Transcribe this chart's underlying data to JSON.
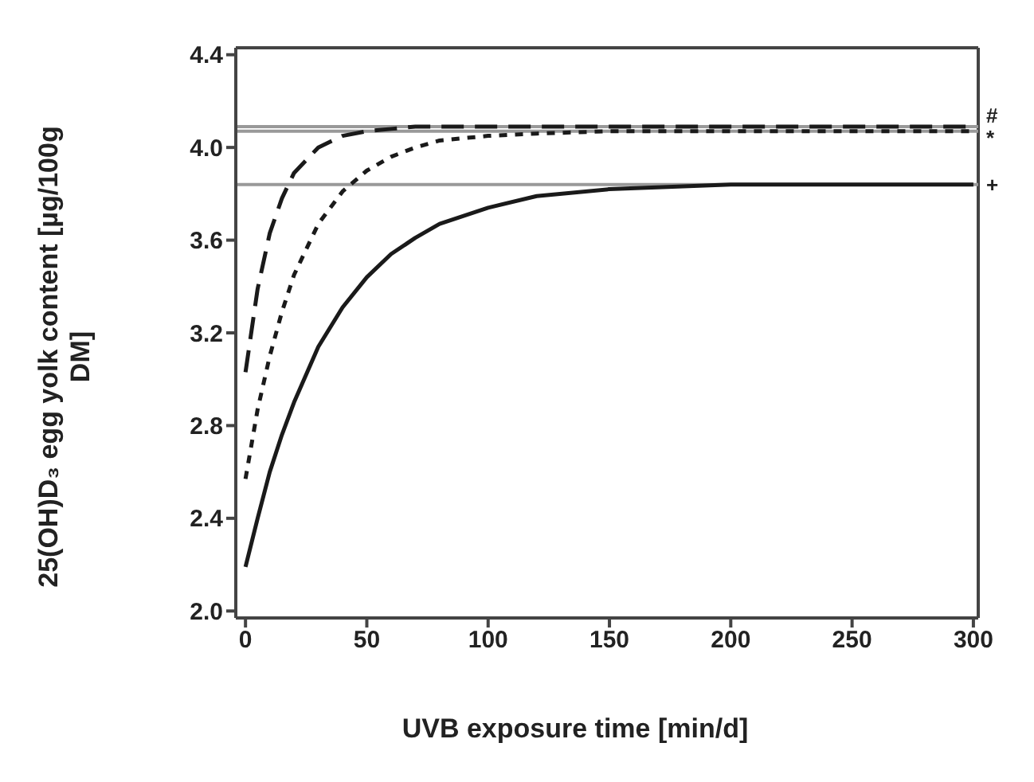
{
  "chart_data": {
    "type": "line",
    "xlabel": "UVB exposure time [min/d]",
    "ylabel": "25(OH)D₃ egg yolk content [µg/100g DM]",
    "x": [
      0,
      5,
      10,
      15,
      20,
      30,
      40,
      50,
      60,
      70,
      80,
      100,
      120,
      150,
      200,
      250,
      300
    ],
    "series": [
      {
        "color": "#1a1a1a",
        "line_style": "solid",
        "values": [
          2.19,
          2.4,
          2.6,
          2.76,
          2.9,
          3.14,
          3.31,
          3.44,
          3.54,
          3.61,
          3.67,
          3.74,
          3.79,
          3.82,
          3.84,
          3.84,
          3.84
        ]
      },
      {
        "color": "#1a1a1a",
        "line_style": "dotted",
        "values": [
          2.57,
          2.87,
          3.1,
          3.29,
          3.45,
          3.67,
          3.81,
          3.9,
          3.96,
          4.0,
          4.03,
          4.05,
          4.06,
          4.07,
          4.07,
          4.07,
          4.07
        ]
      },
      {
        "color": "#1a1a1a",
        "line_style": "dashed",
        "values": [
          3.03,
          3.39,
          3.63,
          3.78,
          3.89,
          4.0,
          4.05,
          4.07,
          4.08,
          4.09,
          4.09,
          4.09,
          4.09,
          4.09,
          4.09,
          4.09,
          4.09
        ]
      }
    ],
    "xlim": [
      -4,
      302
    ],
    "xticks": [
      0,
      50,
      100,
      150,
      200,
      250,
      300
    ],
    "ylim": [
      1.97,
      4.43
    ],
    "yticks": [
      {
        "value": 2,
        "label": "2.0"
      },
      {
        "value": 2.4,
        "label": "2.4"
      },
      {
        "value": 2.8,
        "label": "2.8"
      },
      {
        "value": 3.2,
        "label": "3.2"
      },
      {
        "value": 3.6,
        "label": "3.6"
      },
      {
        "value": 4,
        "label": "4.0"
      },
      {
        "value": 4.4,
        "label": "4.4"
      }
    ],
    "ref_lines": [
      {
        "axis": "y",
        "value": 4.09,
        "label": "#",
        "color": "#999999"
      },
      {
        "axis": "y",
        "value": 4.07,
        "label": "*",
        "color": "#999999"
      },
      {
        "axis": "y",
        "value": 3.84,
        "label": "+",
        "color": "#999999"
      }
    ],
    "grid": false,
    "legend": false,
    "marker": "none"
  }
}
